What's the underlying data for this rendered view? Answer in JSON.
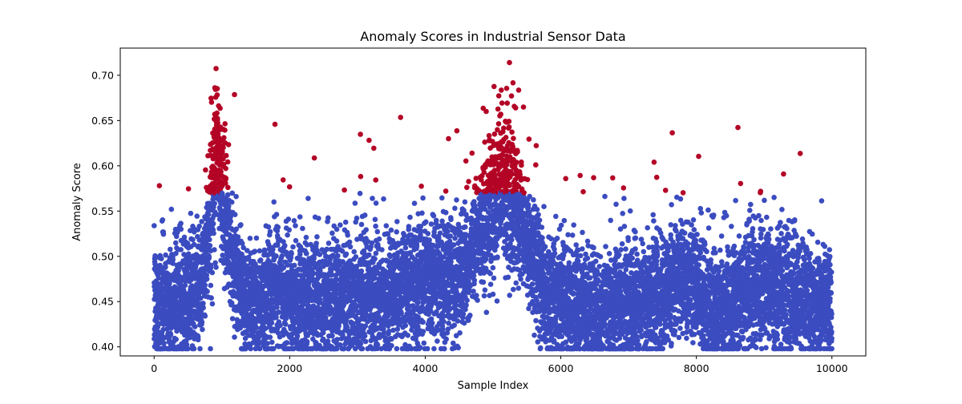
{
  "chart_data": {
    "type": "scatter",
    "title": "Anomaly Scores in Industrial Sensor Data",
    "xlabel": "Sample Index",
    "ylabel": "Anomaly Score",
    "xlim": [
      -500,
      10500
    ],
    "ylim": [
      0.39,
      0.73
    ],
    "xticks": [
      0,
      2000,
      4000,
      6000,
      8000,
      10000
    ],
    "xtick_labels": [
      "0",
      "2000",
      "4000",
      "6000",
      "8000",
      "10000"
    ],
    "yticks": [
      0.4,
      0.45,
      0.5,
      0.55,
      0.6,
      0.65,
      0.7
    ],
    "ytick_labels": [
      "0.40",
      "0.45",
      "0.50",
      "0.55",
      "0.60",
      "0.65",
      "0.70"
    ],
    "grid": false,
    "n_samples": 10000,
    "threshold": 0.57,
    "colors": {
      "normal": "#3b4cc0",
      "anomaly": "#b40426"
    },
    "trend_knots": [
      [
        0,
        0.445
      ],
      [
        500,
        0.455
      ],
      [
        700,
        0.47
      ],
      [
        850,
        0.56
      ],
      [
        930,
        0.62
      ],
      [
        1000,
        0.57
      ],
      [
        1150,
        0.5
      ],
      [
        1300,
        0.455
      ],
      [
        1600,
        0.45
      ],
      [
        1800,
        0.47
      ],
      [
        2000,
        0.455
      ],
      [
        2500,
        0.45
      ],
      [
        3000,
        0.455
      ],
      [
        3500,
        0.46
      ],
      [
        4000,
        0.47
      ],
      [
        4500,
        0.48
      ],
      [
        4800,
        0.52
      ],
      [
        5100,
        0.575
      ],
      [
        5300,
        0.56
      ],
      [
        5600,
        0.5
      ],
      [
        5800,
        0.455
      ],
      [
        6500,
        0.44
      ],
      [
        7200,
        0.445
      ],
      [
        7500,
        0.46
      ],
      [
        7800,
        0.48
      ],
      [
        8000,
        0.47
      ],
      [
        8300,
        0.435
      ],
      [
        8600,
        0.455
      ],
      [
        9000,
        0.47
      ],
      [
        9500,
        0.455
      ],
      [
        10000,
        0.445
      ]
    ],
    "noise_sd": 0.032,
    "noise_sd_peaks": 0.04
  }
}
